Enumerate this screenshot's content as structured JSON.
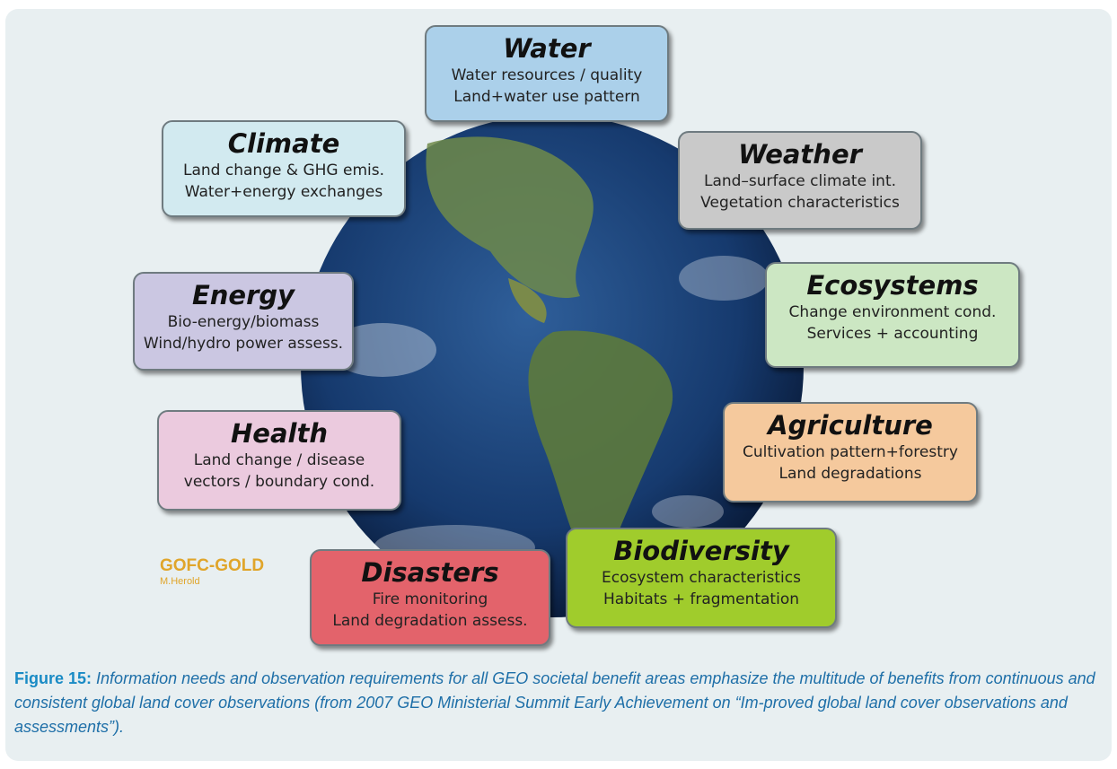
{
  "figure": {
    "nodes": [
      {
        "title": "Water",
        "lines": [
          "Water resources / quality",
          "Land+water use pattern"
        ]
      },
      {
        "title": "Climate",
        "lines": [
          "Land change & GHG emis.",
          "Water+energy exchanges"
        ]
      },
      {
        "title": "Weather",
        "lines": [
          "Land–surface climate int.",
          "Vegetation characteristics"
        ]
      },
      {
        "title": "Energy",
        "lines": [
          "Bio-energy/biomass",
          "Wind/hydro power assess."
        ]
      },
      {
        "title": "Ecosystems",
        "lines": [
          "Change environment cond.",
          "Services + accounting"
        ]
      },
      {
        "title": "Health",
        "lines": [
          "Land change / disease",
          "vectors / boundary cond."
        ]
      },
      {
        "title": "Agriculture",
        "lines": [
          "Cultivation pattern+forestry",
          "Land degradations"
        ]
      },
      {
        "title": "Biodiversity",
        "lines": [
          "Ecosystem characteristics",
          "Habitats + fragmentation"
        ]
      },
      {
        "title": "Disasters",
        "lines": [
          "Fire monitoring",
          "Land degradation assess."
        ]
      }
    ],
    "logo": {
      "title": "GOFC-GOLD",
      "author": "M.Herold"
    }
  },
  "caption": {
    "label": "Figure 15:",
    "text": "Information needs and observation requirements for all GEO societal benefit areas emphasize the multitude of benefits from continuous and consistent global land cover observations (from 2007 GEO Ministerial Summit Early Achievement on “Im-proved global land cover observations and assessments”)."
  }
}
